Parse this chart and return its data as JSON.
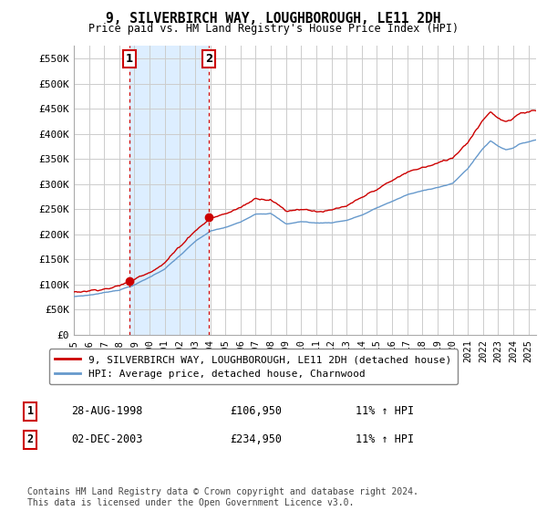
{
  "title": "9, SILVERBIRCH WAY, LOUGHBOROUGH, LE11 2DH",
  "subtitle": "Price paid vs. HM Land Registry's House Price Index (HPI)",
  "ylabel_ticks": [
    "£0",
    "£50K",
    "£100K",
    "£150K",
    "£200K",
    "£250K",
    "£300K",
    "£350K",
    "£400K",
    "£450K",
    "£500K",
    "£550K"
  ],
  "ytick_values": [
    0,
    50000,
    100000,
    150000,
    200000,
    250000,
    300000,
    350000,
    400000,
    450000,
    500000,
    550000
  ],
  "ylim": [
    0,
    575000
  ],
  "xlim_start": 1995.0,
  "xlim_end": 2025.5,
  "sale1_date": 1998.65,
  "sale1_price": 106950,
  "sale1_label": "1",
  "sale1_text": "28-AUG-1998",
  "sale1_amount": "£106,950",
  "sale1_hpi": "11% ↑ HPI",
  "sale2_date": 2003.92,
  "sale2_price": 234950,
  "sale2_label": "2",
  "sale2_text": "02-DEC-2003",
  "sale2_amount": "£234,950",
  "sale2_hpi": "11% ↑ HPI",
  "legend_line1": "9, SILVERBIRCH WAY, LOUGHBOROUGH, LE11 2DH (detached house)",
  "legend_line2": "HPI: Average price, detached house, Charnwood",
  "footer": "Contains HM Land Registry data © Crown copyright and database right 2024.\nThis data is licensed under the Open Government Licence v3.0.",
  "line_color_red": "#cc0000",
  "line_color_blue": "#6699cc",
  "shade_color": "#ddeeff",
  "background_color": "#ffffff",
  "grid_color": "#cccccc"
}
